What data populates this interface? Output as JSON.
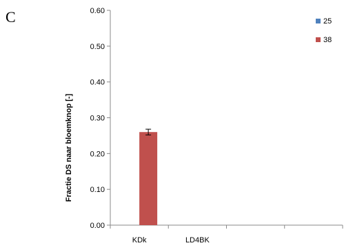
{
  "panel_label": "C",
  "chart_data": {
    "type": "bar",
    "ylabel": "Fractie DS naar bloemknop [-]",
    "xlabel": "",
    "ylim": [
      0,
      0.6
    ],
    "yticks": [
      0.0,
      0.1,
      0.2,
      0.3,
      0.4,
      0.5,
      0.6
    ],
    "ytick_labels": [
      "0.00",
      "0.10",
      "0.20",
      "0.30",
      "0.40",
      "0.50",
      "0.60"
    ],
    "categories": [
      "KDk",
      "LD4BK",
      "",
      ""
    ],
    "series": [
      {
        "name": "25",
        "color": "#4f81bd",
        "values": [
          null,
          null,
          null,
          null
        ]
      },
      {
        "name": "38",
        "color": "#c0504d",
        "values": [
          0.26,
          null,
          null,
          null
        ],
        "errors": [
          0.008,
          null,
          null,
          null
        ]
      }
    ],
    "legend_position": "top-right",
    "grid": false
  }
}
